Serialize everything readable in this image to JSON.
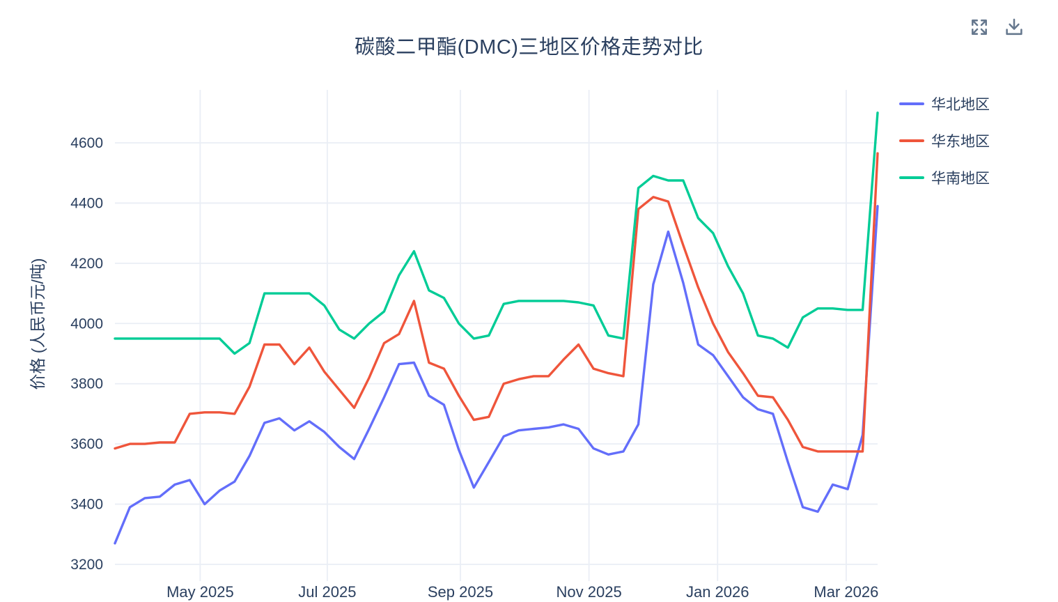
{
  "colors": {
    "text": "#2a3f5f",
    "grid": "#eaeef5",
    "background": "#ffffff",
    "modebar_icon": "#66788e"
  },
  "toolbar": {
    "fullscreen_icon": "expand-icon",
    "download_icon": "download-icon"
  },
  "chart_data": {
    "type": "line",
    "title": "碳酸二甲酯(DMC)三地区价格走势对比",
    "xlabel": "",
    "ylabel": "价格 (人民币元/吨)",
    "ylim": [
      3145,
      4775
    ],
    "yticks": [
      3200,
      3400,
      3600,
      3800,
      4000,
      4200,
      4400,
      4600
    ],
    "x_tick_labels": [
      "May 2025",
      "Jul 2025",
      "Sep 2025",
      "Nov 2025",
      "Jan 2026",
      "Mar 2026"
    ],
    "x_tick_indices": [
      5.7,
      14.2,
      23.1,
      31.7,
      40.3,
      48.9
    ],
    "grid": true,
    "legend_position": "right",
    "series": [
      {
        "name": "华北地区",
        "key": "north-china",
        "color": "#636efa",
        "values": [
          3270,
          3390,
          3420,
          3425,
          3465,
          3480,
          3400,
          3445,
          3475,
          3560,
          3670,
          3685,
          3645,
          3675,
          3640,
          3590,
          3550,
          3650,
          3755,
          3865,
          3870,
          3760,
          3730,
          3580,
          3455,
          3540,
          3625,
          3645,
          3650,
          3655,
          3665,
          3650,
          3585,
          3565,
          3575,
          3665,
          4130,
          4305,
          4135,
          3930,
          3895,
          3825,
          3755,
          3715,
          3700,
          3540,
          3390,
          3375,
          3465,
          3450,
          3630,
          4390
        ]
      },
      {
        "name": "华东地区",
        "key": "east-china",
        "color": "#ef553b",
        "values": [
          3585,
          3600,
          3600,
          3605,
          3605,
          3700,
          3705,
          3705,
          3700,
          3790,
          3930,
          3930,
          3865,
          3920,
          3840,
          3780,
          3720,
          3820,
          3935,
          3965,
          4075,
          3870,
          3850,
          3760,
          3680,
          3690,
          3800,
          3815,
          3825,
          3825,
          3880,
          3930,
          3850,
          3835,
          3825,
          4380,
          4420,
          4405,
          4260,
          4120,
          4000,
          3905,
          3835,
          3760,
          3755,
          3680,
          3590,
          3575,
          3575,
          3575,
          3575,
          4565
        ]
      },
      {
        "name": "华南地区",
        "key": "south-china",
        "color": "#00cc96",
        "values": [
          3950,
          3950,
          3950,
          3950,
          3950,
          3950,
          3950,
          3950,
          3900,
          3935,
          4100,
          4100,
          4100,
          4100,
          4060,
          3980,
          3950,
          4000,
          4040,
          4160,
          4240,
          4110,
          4085,
          4000,
          3950,
          3960,
          4065,
          4075,
          4075,
          4075,
          4075,
          4070,
          4060,
          3960,
          3950,
          4450,
          4490,
          4475,
          4475,
          4350,
          4300,
          4190,
          4100,
          3960,
          3950,
          3920,
          4020,
          4050,
          4050,
          4045,
          4045,
          4700
        ]
      }
    ]
  }
}
